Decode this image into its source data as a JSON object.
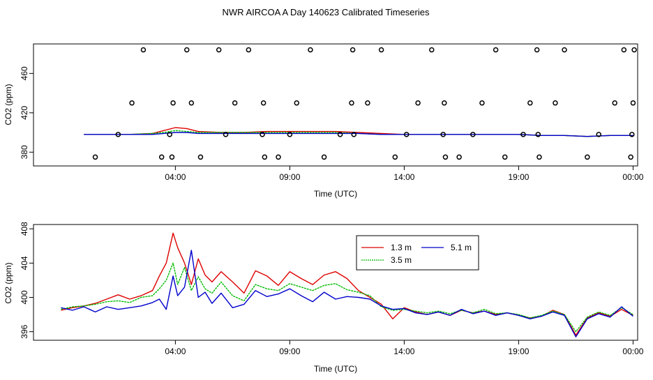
{
  "title": "NWR AIRCOA A  Day 140623  Calibrated Timeseries",
  "chart_data": [
    {
      "type": "line",
      "panel": "top",
      "xlabel": "Time (UTC)",
      "ylabel": "CO2 (ppm)",
      "xlim": [
        -2.2,
        24.2
      ],
      "ylim": [
        366,
        490
      ],
      "xticks": [
        4,
        9,
        14,
        19,
        24
      ],
      "xtick_labels": [
        "04:00",
        "09:00",
        "14:00",
        "19:00",
        "00:00"
      ],
      "yticks": [
        380,
        420,
        460
      ],
      "yticks_labels": [
        "380",
        "420",
        "460"
      ],
      "line_series": [
        {
          "color": "#dd0000",
          "x": [
            0,
            1,
            2,
            3,
            3.5,
            4,
            4.5,
            5,
            6,
            7,
            8,
            9,
            10,
            11,
            12,
            13,
            14,
            15,
            16,
            17,
            18,
            19,
            20,
            21,
            22,
            23,
            24
          ],
          "y": [
            398,
            398,
            398,
            399,
            402,
            405,
            404,
            401,
            400,
            400,
            401,
            401,
            401,
            401,
            400,
            399,
            398,
            398,
            398,
            398,
            398,
            398,
            397,
            397,
            396,
            397,
            397
          ]
        },
        {
          "color": "#00bb00",
          "x": [
            0,
            1,
            2,
            3,
            3.5,
            4,
            4.5,
            5,
            6,
            7,
            8,
            9,
            10,
            11,
            12,
            13,
            14,
            15,
            16,
            17,
            18,
            19,
            20,
            21,
            22,
            23,
            24
          ],
          "y": [
            398,
            398,
            398,
            399,
            400,
            402,
            401,
            400,
            400,
            400,
            400,
            400,
            400,
            400,
            399,
            398,
            398,
            398,
            398,
            398,
            398,
            398,
            397,
            397,
            396,
            397,
            397
          ]
        },
        {
          "color": "#0000cc",
          "x": [
            0,
            1,
            2,
            3,
            3.5,
            4,
            4.5,
            5,
            6,
            7,
            8,
            9,
            10,
            11,
            12,
            13,
            14,
            15,
            16,
            17,
            18,
            19,
            20,
            21,
            22,
            23,
            24
          ],
          "y": [
            398,
            398,
            398,
            398,
            399,
            400,
            400,
            399,
            399,
            399,
            399,
            399,
            399,
            399,
            399,
            398,
            398,
            398,
            398,
            398,
            398,
            398,
            397,
            397,
            396,
            397,
            397
          ]
        }
      ],
      "points_x": [
        0.5,
        1.5,
        2.1,
        2.6,
        3.4,
        3.75,
        3.85,
        3.9,
        4.5,
        4.7,
        5.1,
        5.9,
        6.2,
        6.6,
        7.2,
        7.8,
        7.85,
        7.9,
        8.5,
        9.0,
        9.3,
        9.9,
        10.5,
        11.2,
        11.7,
        11.75,
        11.8,
        12.4,
        13.0,
        13.6,
        14.1,
        14.6,
        15.2,
        15.7,
        15.75,
        15.8,
        16.4,
        17.0,
        17.4,
        18.0,
        18.4,
        19.2,
        19.5,
        19.8,
        19.85,
        19.9,
        20.6,
        21.0,
        22.0,
        22.5,
        23.2,
        23.6,
        23.9,
        23.95,
        24.0,
        24.05
      ],
      "points_y": [
        375,
        398,
        430,
        484,
        375,
        398,
        375,
        430,
        484,
        430,
        375,
        484,
        398,
        430,
        484,
        398,
        430,
        375,
        375,
        398,
        430,
        484,
        375,
        398,
        430,
        484,
        398,
        430,
        484,
        375,
        398,
        430,
        484,
        398,
        430,
        375,
        375,
        398,
        430,
        484,
        375,
        398,
        430,
        484,
        398,
        375,
        430,
        484,
        375,
        398,
        430,
        484,
        375,
        398,
        430,
        484
      ],
      "points_color": "#000000"
    },
    {
      "type": "line",
      "panel": "bottom",
      "xlabel": "Time (UTC)",
      "ylabel": "CO2 (ppm)",
      "xlim": [
        -2.2,
        24.2
      ],
      "ylim": [
        395,
        408.5
      ],
      "xticks": [
        4,
        9,
        14,
        19,
        24
      ],
      "xtick_labels": [
        "04:00",
        "09:00",
        "14:00",
        "19:00",
        "00:00"
      ],
      "yticks": [
        396,
        400,
        404,
        408
      ],
      "ytick_labels": [
        "396",
        "400",
        "404",
        "408"
      ],
      "legend": {
        "placement": "top-center",
        "entries": [
          {
            "label": "1.3 m",
            "color": "#dd0000"
          },
          {
            "label": "5.1 m",
            "color": "#0000cc"
          },
          {
            "label": "3.5 m",
            "color": "#00bb00"
          }
        ]
      },
      "series": [
        {
          "name": "1.3 m",
          "color": "#dd0000",
          "x": [
            -1,
            -0.5,
            0,
            0.5,
            1,
            1.5,
            2,
            2.5,
            3,
            3.3,
            3.6,
            3.9,
            4.1,
            4.4,
            4.7,
            5.0,
            5.3,
            5.6,
            6.0,
            6.5,
            7.0,
            7.5,
            8.0,
            8.5,
            9.0,
            9.5,
            10.0,
            10.5,
            11.0,
            11.5,
            12.0,
            12.5,
            13.0,
            13.5,
            14.0,
            14.5,
            15.0,
            15.5,
            16.0,
            16.5,
            17.0,
            17.5,
            18.0,
            18.5,
            19.0,
            19.5,
            20.0,
            20.5,
            21.0,
            21.5,
            22.0,
            22.5,
            23.0,
            23.5,
            24.0
          ],
          "y": [
            398.5,
            398.8,
            399.0,
            399.3,
            399.8,
            400.3,
            399.8,
            400.2,
            400.8,
            402.5,
            404.0,
            407.5,
            405.8,
            404.0,
            401.5,
            404.5,
            402.6,
            401.8,
            403.0,
            401.8,
            400.5,
            403.1,
            402.5,
            401.4,
            403.0,
            402.2,
            401.5,
            402.6,
            403.0,
            402.2,
            400.8,
            400.0,
            399.2,
            397.5,
            398.8,
            398.3,
            398.0,
            398.3,
            397.9,
            398.5,
            398.2,
            398.4,
            398.0,
            398.2,
            397.9,
            397.6,
            397.8,
            398.5,
            398.0,
            395.6,
            397.6,
            398.2,
            397.8,
            398.6,
            397.9
          ]
        },
        {
          "name": "3.5 m",
          "color": "#00bb00",
          "x": [
            -1,
            -0.5,
            0,
            0.5,
            1,
            1.5,
            2,
            2.5,
            3,
            3.3,
            3.6,
            3.9,
            4.1,
            4.4,
            4.7,
            5.0,
            5.3,
            5.6,
            6.0,
            6.5,
            7.0,
            7.5,
            8.0,
            8.5,
            9.0,
            9.5,
            10.0,
            10.5,
            11.0,
            11.5,
            12.0,
            12.5,
            13.0,
            13.5,
            14.0,
            14.5,
            15.0,
            15.5,
            16.0,
            16.5,
            17.0,
            17.5,
            18.0,
            18.5,
            19.0,
            19.5,
            20.0,
            20.5,
            21.0,
            21.5,
            22.0,
            22.5,
            23.0,
            23.5,
            24.0
          ],
          "y": [
            398.6,
            398.9,
            399.0,
            399.2,
            399.5,
            399.6,
            399.4,
            400.0,
            400.2,
            401.0,
            402.0,
            404.0,
            401.5,
            403.5,
            400.8,
            402.4,
            401.0,
            400.5,
            401.8,
            400.2,
            399.6,
            401.5,
            401.0,
            400.8,
            401.6,
            401.2,
            400.8,
            401.4,
            401.6,
            400.9,
            400.6,
            400.2,
            398.9,
            398.5,
            398.6,
            398.4,
            398.2,
            398.4,
            398.1,
            398.5,
            398.2,
            398.6,
            398.1,
            398.2,
            398.0,
            397.6,
            397.9,
            398.4,
            398.0,
            396.0,
            397.7,
            398.3,
            397.9,
            398.8,
            398.0
          ]
        },
        {
          "name": "5.1 m",
          "color": "#0000cc",
          "x": [
            -1,
            -0.5,
            0,
            0.5,
            1,
            1.5,
            2,
            2.5,
            3,
            3.3,
            3.6,
            3.9,
            4.1,
            4.4,
            4.7,
            5.0,
            5.3,
            5.6,
            6.0,
            6.5,
            7.0,
            7.5,
            8.0,
            8.5,
            9.0,
            9.5,
            10.0,
            10.5,
            11.0,
            11.5,
            12.0,
            12.5,
            13.0,
            13.5,
            14.0,
            14.5,
            15.0,
            15.5,
            16.0,
            16.5,
            17.0,
            17.5,
            18.0,
            18.5,
            19.0,
            19.5,
            20.0,
            20.5,
            21.0,
            21.5,
            22.0,
            22.5,
            23.0,
            23.5,
            24.0
          ],
          "y": [
            398.8,
            398.5,
            398.9,
            398.3,
            398.9,
            398.6,
            398.8,
            399.0,
            399.4,
            399.8,
            398.6,
            402.5,
            400.2,
            401.2,
            405.5,
            400.0,
            400.6,
            399.3,
            400.5,
            398.8,
            399.2,
            400.8,
            400.1,
            400.4,
            401.0,
            400.2,
            399.5,
            400.6,
            399.8,
            400.1,
            400.0,
            399.8,
            399.0,
            398.6,
            398.7,
            398.2,
            398.0,
            398.3,
            397.9,
            398.6,
            398.1,
            398.4,
            397.9,
            398.2,
            397.9,
            397.5,
            397.8,
            398.3,
            397.9,
            395.4,
            397.5,
            398.1,
            397.7,
            398.9,
            397.8
          ]
        }
      ]
    }
  ]
}
